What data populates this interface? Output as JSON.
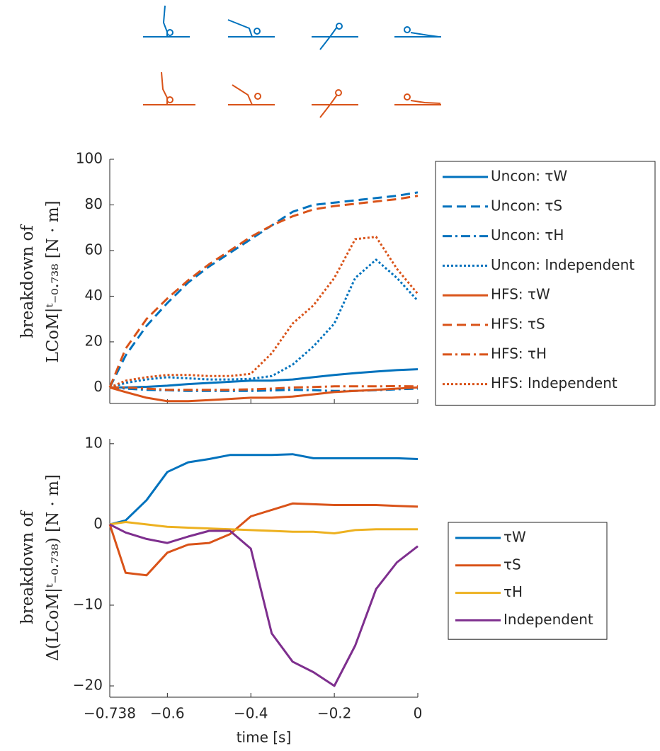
{
  "chart_data": [
    {
      "type": "line",
      "ylabel": [
        "breakdown of",
        "LCoM|ᵗ₋₀.₇₃₈ [N · m]"
      ],
      "x": [
        -0.738,
        -0.7,
        -0.65,
        -0.6,
        -0.55,
        -0.5,
        -0.45,
        -0.4,
        -0.35,
        -0.3,
        -0.25,
        -0.2,
        -0.15,
        -0.1,
        -0.05,
        0
      ],
      "xlim": [
        -0.738,
        0
      ],
      "xticks": [
        -0.738,
        -0.6,
        -0.4,
        -0.2,
        0
      ],
      "ylim": [
        -7,
        100
      ],
      "yticks": [
        0,
        20,
        40,
        60,
        80,
        100
      ],
      "series": [
        {
          "name": "Uncon: τW",
          "color": "#0072BD",
          "linestyle": "solid",
          "values": [
            0,
            0,
            0.3,
            0.8,
            1.5,
            2,
            2.5,
            3,
            3,
            3.5,
            4.5,
            5.5,
            6.3,
            7,
            7.6,
            8
          ]
        },
        {
          "name": "Uncon: τS",
          "color": "#0072BD",
          "linestyle": "dashed",
          "values": [
            0,
            14,
            27,
            37,
            46,
            53,
            59,
            65,
            71,
            77,
            80,
            81,
            82,
            83,
            84,
            85.5
          ]
        },
        {
          "name": "Uncon: τH",
          "color": "#0072BD",
          "linestyle": "dashdot",
          "values": [
            0,
            -0.5,
            -1,
            -1.2,
            -1.5,
            -1.5,
            -1.5,
            -1.5,
            -1.3,
            -1,
            -1.2,
            -1.5,
            -1.5,
            -1.2,
            -0.8,
            -0.5
          ]
        },
        {
          "name": "Uncon: Independent",
          "color": "#0072BD",
          "linestyle": "dotted",
          "values": [
            0,
            2,
            3.5,
            4.5,
            4,
            3.5,
            3.5,
            3.8,
            5,
            10,
            18,
            28,
            48,
            56,
            48,
            38
          ]
        },
        {
          "name": "HFS: τW",
          "color": "#D95319",
          "linestyle": "solid",
          "values": [
            0,
            -2,
            -4.5,
            -6,
            -6,
            -5.5,
            -5,
            -4.5,
            -4.5,
            -4,
            -3,
            -2,
            -1.5,
            -1,
            -0.5,
            0
          ]
        },
        {
          "name": "HFS: τS",
          "color": "#D95319",
          "linestyle": "dashed",
          "values": [
            0,
            17,
            30,
            39,
            47,
            54,
            60,
            66,
            71,
            75,
            78,
            79.5,
            80.5,
            81.5,
            82.5,
            84
          ]
        },
        {
          "name": "HFS: τH",
          "color": "#D95319",
          "linestyle": "dashdot",
          "values": [
            0,
            0,
            -0.5,
            -1,
            -1,
            -1,
            -1,
            -0.8,
            -0.5,
            0,
            0.2,
            0.5,
            0.5,
            0.5,
            0.6,
            0.5
          ]
        },
        {
          "name": "HFS: Independent",
          "color": "#D95319",
          "linestyle": "dotted",
          "values": [
            0,
            3,
            4.5,
            5.5,
            5.5,
            5,
            5,
            6,
            15,
            28,
            36,
            48,
            65,
            66,
            52,
            41
          ]
        }
      ]
    },
    {
      "type": "line",
      "ylabel": [
        "breakdown of",
        "Δ(LCoM|ᵗ₋₀.₇₃₈) [N · m]"
      ],
      "xlabel": "time [s]",
      "x": [
        -0.738,
        -0.7,
        -0.65,
        -0.6,
        -0.55,
        -0.5,
        -0.45,
        -0.4,
        -0.35,
        -0.3,
        -0.25,
        -0.2,
        -0.15,
        -0.1,
        -0.05,
        0
      ],
      "xlim": [
        -0.738,
        0
      ],
      "xticks": [
        {
          "value": -0.738,
          "label": "−0.738"
        },
        {
          "value": -0.6,
          "label": "−0.6"
        },
        {
          "value": -0.4,
          "label": "−0.4"
        },
        {
          "value": -0.2,
          "label": "−0.2"
        },
        0
      ],
      "ylim": [
        -21.4,
        10.6
      ],
      "yticks": [
        {
          "value": -20,
          "label": "−20"
        },
        {
          "value": -10,
          "label": "−10"
        },
        0,
        10
      ],
      "series": [
        {
          "name": "τW",
          "color": "#0072BD",
          "linestyle": "solid",
          "values": [
            0,
            0.5,
            3,
            6.5,
            7.7,
            8.1,
            8.6,
            8.6,
            8.6,
            8.7,
            8.2,
            8.2,
            8.2,
            8.2,
            8.2,
            8.1
          ]
        },
        {
          "name": "τS",
          "color": "#D95319",
          "linestyle": "solid",
          "values": [
            0,
            -6,
            -6.3,
            -3.5,
            -2.5,
            -2.3,
            -1.2,
            1,
            1.8,
            2.6,
            2.5,
            2.4,
            2.4,
            2.4,
            2.3,
            2.2
          ]
        },
        {
          "name": "τH",
          "color": "#EDB120",
          "linestyle": "solid",
          "values": [
            0,
            0.3,
            0,
            -0.3,
            -0.4,
            -0.5,
            -0.6,
            -0.7,
            -0.8,
            -0.9,
            -0.9,
            -1.1,
            -0.7,
            -0.6,
            -0.6,
            -0.6
          ]
        },
        {
          "name": "Independent",
          "color": "#7E2F8E",
          "linestyle": "solid",
          "values": [
            0,
            -1,
            -1.8,
            -2.3,
            -1.5,
            -0.8,
            -0.8,
            -3,
            -13.5,
            -17,
            -18.3,
            -20,
            -15,
            -8,
            -4.7,
            -2.7
          ]
        }
      ]
    }
  ]
}
